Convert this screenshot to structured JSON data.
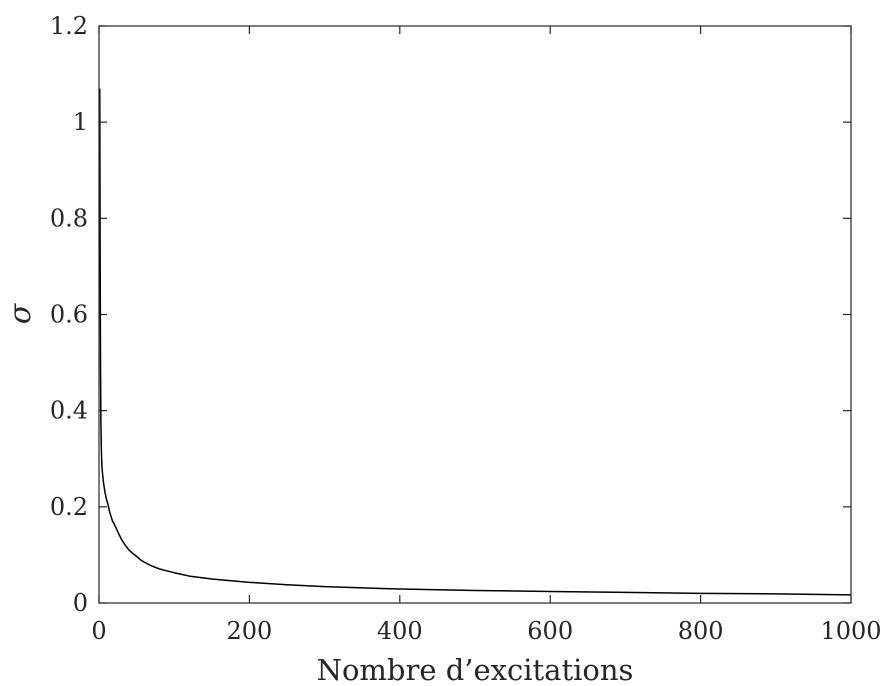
{
  "chart_data": {
    "type": "line",
    "title": "",
    "xlabel": "Nombre d’excitations",
    "ylabel": "σ",
    "xlim": [
      0,
      1000
    ],
    "ylim": [
      0,
      1.2
    ],
    "xticks": [
      0,
      200,
      400,
      600,
      800,
      1000
    ],
    "yticks": [
      0,
      0.2,
      0.4,
      0.6,
      0.8,
      1,
      1.2
    ],
    "xtick_labels": [
      "0",
      "200",
      "400",
      "600",
      "800",
      "1000"
    ],
    "ytick_labels": [
      "0",
      "0.2",
      "0.4",
      "0.6",
      "0.8",
      "1",
      "1.2"
    ],
    "grid": false,
    "line_color": "#000000",
    "series": [
      {
        "x": [
          1,
          1.5,
          2,
          2.5,
          3,
          3.5,
          4,
          5,
          6,
          7,
          8,
          10,
          12,
          14,
          16,
          18,
          20,
          25,
          30,
          35,
          40,
          45,
          50,
          55,
          60,
          70,
          80,
          100,
          120,
          150,
          200,
          250,
          300,
          400,
          500,
          600,
          700,
          800,
          900,
          1000
        ],
        "y": [
          1.07,
          0.75,
          0.5,
          0.38,
          0.33,
          0.3,
          0.28,
          0.265,
          0.25,
          0.24,
          0.23,
          0.215,
          0.205,
          0.19,
          0.18,
          0.17,
          0.165,
          0.148,
          0.132,
          0.12,
          0.11,
          0.103,
          0.097,
          0.09,
          0.085,
          0.077,
          0.071,
          0.063,
          0.056,
          0.05,
          0.043,
          0.038,
          0.034,
          0.029,
          0.026,
          0.024,
          0.022,
          0.02,
          0.019,
          0.017
        ]
      }
    ]
  }
}
